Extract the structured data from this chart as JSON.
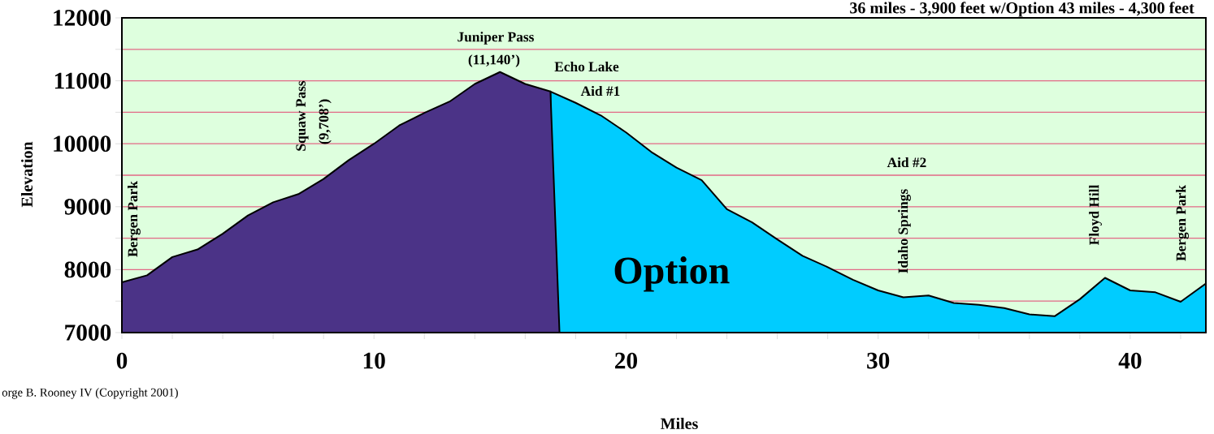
{
  "chart_data": {
    "type": "area",
    "title": "36 miles - 3,900 feet  w/Option 43 miles - 4,300 feet",
    "xlabel": "Miles",
    "ylabel": "Elevation",
    "xlim": [
      0,
      43
    ],
    "ylim": [
      7000,
      12000
    ],
    "xticks": [
      0,
      {
        "value": 2,
        "label": null
      },
      {
        "value": 4,
        "label": null
      },
      {
        "value": 6,
        "label": null
      },
      {
        "value": 8,
        "label": null
      },
      10,
      {
        "value": 12,
        "label": null
      },
      {
        "value": 14,
        "label": null
      },
      {
        "value": 16,
        "label": null
      },
      {
        "value": 18,
        "label": null
      },
      20,
      {
        "value": 22,
        "label": null
      },
      {
        "value": 24,
        "label": null
      },
      {
        "value": 26,
        "label": null
      },
      {
        "value": 28,
        "label": null
      },
      30,
      {
        "value": 32,
        "label": null
      },
      {
        "value": 34,
        "label": null
      },
      {
        "value": 36,
        "label": null
      },
      {
        "value": 38,
        "label": null
      },
      40,
      {
        "value": 42,
        "label": null
      }
    ],
    "yticks": [
      7000,
      {
        "value": 7500,
        "label": null
      },
      8000,
      {
        "value": 8500,
        "label": null
      },
      9000,
      {
        "value": 9500,
        "label": null
      },
      10000,
      {
        "value": 10500,
        "label": null
      },
      11000,
      {
        "value": 11500,
        "label": null
      },
      12000
    ],
    "grid": "y",
    "series": [
      {
        "name": "Option",
        "color": "#00ccff",
        "x": [
          17,
          18,
          19,
          20,
          21,
          22,
          23,
          24,
          25,
          26,
          27,
          28,
          29,
          30,
          31,
          32,
          33,
          34,
          35,
          36,
          37,
          38,
          39,
          40,
          41,
          42,
          43
        ],
        "values": [
          10830,
          10650,
          10450,
          10180,
          9870,
          9620,
          9420,
          8960,
          8750,
          8480,
          8220,
          8040,
          7840,
          7670,
          7560,
          7590,
          7470,
          7440,
          7390,
          7290,
          7260,
          7530,
          7870,
          7670,
          7640,
          7490,
          7780
        ]
      },
      {
        "color": "#4b3387",
        "x": [
          0,
          1,
          2,
          3,
          4,
          5,
          6,
          7,
          8,
          9,
          10,
          11,
          12,
          13,
          14,
          15,
          16,
          17,
          17.36
        ],
        "values": [
          7800,
          7910,
          8200,
          8320,
          8570,
          8860,
          9070,
          9200,
          9440,
          9740,
          10000,
          10290,
          10490,
          10670,
          10950,
          11140,
          10950,
          10830,
          7000
        ]
      }
    ],
    "annotations": [
      "Bergen Park",
      "Squaw  Pass",
      "(9,708’)",
      "Juniper Pass",
      "(11,140’)",
      "Echo Lake",
      "Aid #1",
      "Aid #2",
      "Idaho Springs",
      "Floyd Hill",
      "Bergen Park",
      "orge B. Rooney IV (Copyright 2001)"
    ]
  }
}
